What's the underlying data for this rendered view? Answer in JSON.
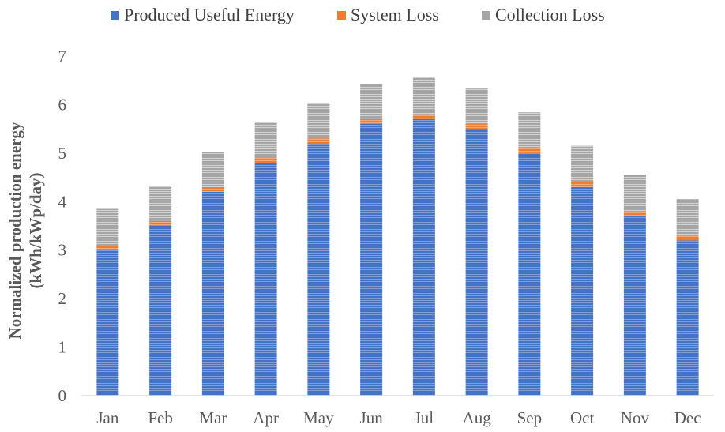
{
  "chart_data": {
    "type": "bar",
    "stacked": true,
    "categories": [
      "Jan",
      "Feb",
      "Mar",
      "Apr",
      "May",
      "Jun",
      "Jul",
      "Aug",
      "Sep",
      "Oct",
      "Nov",
      "Dec"
    ],
    "series": [
      {
        "name": "Produced Useful Energy",
        "color": "#4472C4",
        "values": [
          3.0,
          3.5,
          4.2,
          4.8,
          5.2,
          5.6,
          5.7,
          5.5,
          5.0,
          4.3,
          3.7,
          3.2
        ]
      },
      {
        "name": "System Loss",
        "color": "#ED7D31",
        "values": [
          0.08,
          0.1,
          0.1,
          0.1,
          0.1,
          0.1,
          0.1,
          0.1,
          0.1,
          0.1,
          0.1,
          0.1
        ]
      },
      {
        "name": "Collection Loss",
        "color": "#A5A5A5",
        "values": [
          0.77,
          0.73,
          0.73,
          0.74,
          0.74,
          0.73,
          0.76,
          0.73,
          0.74,
          0.75,
          0.75,
          0.75
        ]
      }
    ],
    "ylabel_line1": "Normalized production energy",
    "ylabel_line2": "(kWh/kWp/day)",
    "xlabel": "",
    "ylim": [
      0,
      7
    ],
    "yticks": [
      "0",
      "1",
      "2",
      "3",
      "4",
      "5",
      "6",
      "7"
    ],
    "grid": false,
    "legend_position": "top"
  }
}
